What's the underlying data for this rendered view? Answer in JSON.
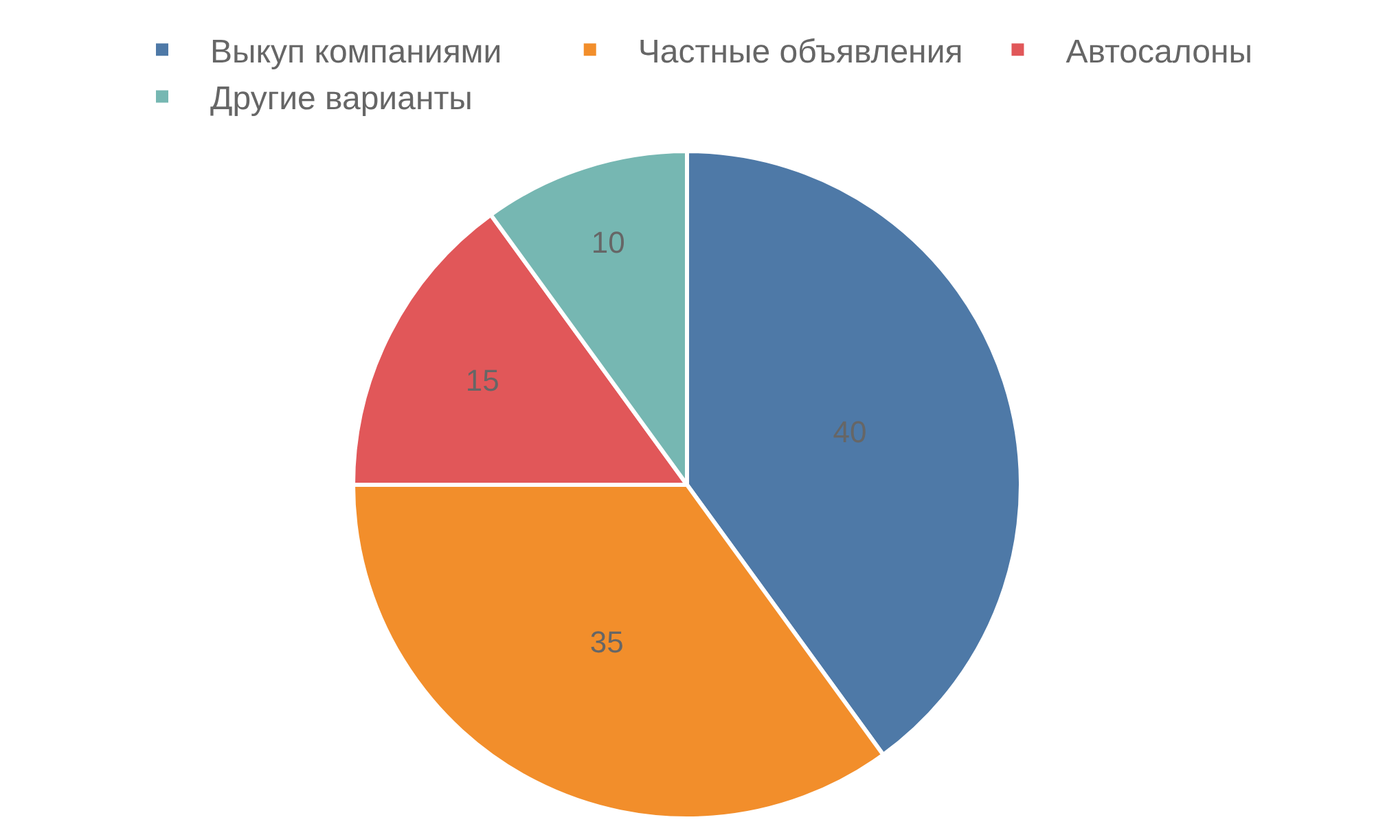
{
  "chart_data": {
    "type": "pie",
    "categories": [
      "Выкуп компаниями",
      "Частные объявления",
      "Автосалоны",
      "Другие варианты"
    ],
    "values": [
      40,
      35,
      15,
      10
    ],
    "colors": [
      "#4e79a7",
      "#f28e2b",
      "#e15759",
      "#76b7b2"
    ],
    "data_labels": true,
    "legend": "top"
  }
}
